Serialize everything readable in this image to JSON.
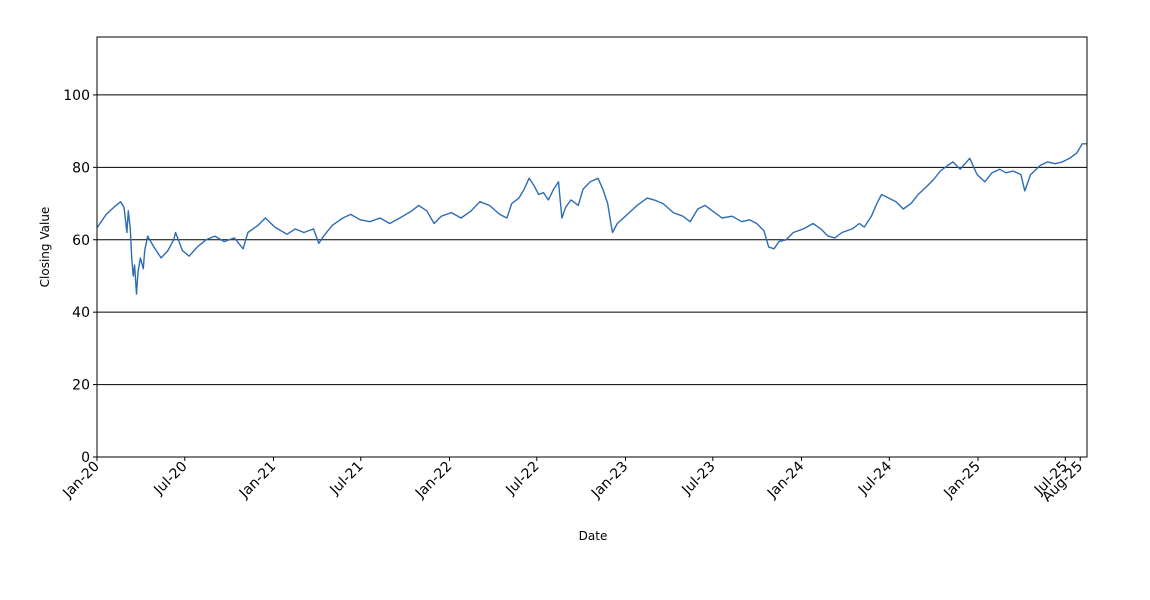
{
  "chart_data": {
    "type": "line",
    "title": "",
    "xlabel": "Date",
    "ylabel": "Closing Value",
    "ylim": [
      0,
      116
    ],
    "xlim": [
      "2020-01-01",
      "2025-08-15"
    ],
    "grid": {
      "y": true,
      "x": false
    },
    "legend": "none",
    "y_ticks": [
      "0",
      "20",
      "40",
      "60",
      "80",
      "100"
    ],
    "x_tick_labels": [
      {
        "date": "2020-01-01",
        "label": "Jan-20"
      },
      {
        "date": "2020-07-01",
        "label": "Jul-20"
      },
      {
        "date": "2021-01-01",
        "label": "Jan-21"
      },
      {
        "date": "2021-07-01",
        "label": "Jul-21"
      },
      {
        "date": "2022-01-01",
        "label": "Jan-22"
      },
      {
        "date": "2022-07-01",
        "label": "Jul-22"
      },
      {
        "date": "2023-01-01",
        "label": "Jan-23"
      },
      {
        "date": "2023-07-01",
        "label": "Jul-23"
      },
      {
        "date": "2024-01-01",
        "label": "Jan-24"
      },
      {
        "date": "2024-07-01",
        "label": "Jul-24"
      },
      {
        "date": "2025-01-01",
        "label": "Jan-25"
      },
      {
        "date": "2025-07-01",
        "label": "Jul-25"
      },
      {
        "date": "2025-08-01",
        "label": "Aug-25"
      }
    ],
    "series": [
      {
        "color": "#2d6bb5",
        "points": [
          [
            "2020-01-02",
            63.5
          ],
          [
            "2020-01-20",
            67
          ],
          [
            "2020-02-05",
            69
          ],
          [
            "2020-02-19",
            70.5
          ],
          [
            "2020-02-26",
            69
          ],
          [
            "2020-03-03",
            62
          ],
          [
            "2020-03-06",
            68
          ],
          [
            "2020-03-10",
            63
          ],
          [
            "2020-03-13",
            55
          ],
          [
            "2020-03-16",
            50
          ],
          [
            "2020-03-19",
            53
          ],
          [
            "2020-03-23",
            45
          ],
          [
            "2020-03-26",
            51
          ],
          [
            "2020-03-31",
            55
          ],
          [
            "2020-04-06",
            52
          ],
          [
            "2020-04-09",
            57
          ],
          [
            "2020-04-15",
            61
          ],
          [
            "2020-04-28",
            58
          ],
          [
            "2020-05-13",
            55
          ],
          [
            "2020-05-27",
            57
          ],
          [
            "2020-06-08",
            60
          ],
          [
            "2020-06-12",
            62
          ],
          [
            "2020-06-26",
            57
          ],
          [
            "2020-07-10",
            55.5
          ],
          [
            "2020-07-27",
            58
          ],
          [
            "2020-08-14",
            60
          ],
          [
            "2020-09-01",
            61
          ],
          [
            "2020-09-21",
            59.5
          ],
          [
            "2020-10-12",
            60.5
          ],
          [
            "2020-10-30",
            57.5
          ],
          [
            "2020-11-09",
            62
          ],
          [
            "2020-11-30",
            64
          ],
          [
            "2020-12-15",
            66
          ],
          [
            "2021-01-04",
            63.5
          ],
          [
            "2021-01-29",
            61.5
          ],
          [
            "2021-02-15",
            63
          ],
          [
            "2021-03-05",
            62
          ],
          [
            "2021-03-25",
            63
          ],
          [
            "2021-04-05",
            59
          ],
          [
            "2021-04-15",
            61
          ],
          [
            "2021-05-03",
            64
          ],
          [
            "2021-05-25",
            66
          ],
          [
            "2021-06-10",
            67
          ],
          [
            "2021-06-30",
            65.5
          ],
          [
            "2021-07-20",
            65
          ],
          [
            "2021-08-10",
            66
          ],
          [
            "2021-08-30",
            64.5
          ],
          [
            "2021-09-20",
            66
          ],
          [
            "2021-10-15",
            68
          ],
          [
            "2021-10-29",
            69.5
          ],
          [
            "2021-11-15",
            68
          ],
          [
            "2021-11-30",
            64.5
          ],
          [
            "2021-12-15",
            66.5
          ],
          [
            "2022-01-05",
            67.5
          ],
          [
            "2022-01-25",
            66
          ],
          [
            "2022-02-15",
            68
          ],
          [
            "2022-03-05",
            70.5
          ],
          [
            "2022-03-25",
            69.5
          ],
          [
            "2022-04-15",
            67
          ],
          [
            "2022-04-30",
            66
          ],
          [
            "2022-05-10",
            70
          ],
          [
            "2022-05-25",
            71.5
          ],
          [
            "2022-06-05",
            74
          ],
          [
            "2022-06-15",
            77
          ],
          [
            "2022-06-25",
            75
          ],
          [
            "2022-07-05",
            72.5
          ],
          [
            "2022-07-15",
            73
          ],
          [
            "2022-07-25",
            71
          ],
          [
            "2022-08-05",
            74
          ],
          [
            "2022-08-15",
            76
          ],
          [
            "2022-08-22",
            66
          ],
          [
            "2022-08-30",
            69
          ],
          [
            "2022-09-10",
            71
          ],
          [
            "2022-09-25",
            69.5
          ],
          [
            "2022-10-05",
            74
          ],
          [
            "2022-10-20",
            76
          ],
          [
            "2022-11-05",
            77
          ],
          [
            "2022-11-15",
            74
          ],
          [
            "2022-11-25",
            70
          ],
          [
            "2022-12-01",
            65
          ],
          [
            "2022-12-05",
            62
          ],
          [
            "2022-12-15",
            64.5
          ],
          [
            "2023-01-05",
            67
          ],
          [
            "2023-01-25",
            69.5
          ],
          [
            "2023-02-15",
            71.5
          ],
          [
            "2023-03-01",
            71
          ],
          [
            "2023-03-20",
            70
          ],
          [
            "2023-04-10",
            67.5
          ],
          [
            "2023-04-30",
            66.5
          ],
          [
            "2023-05-15",
            65
          ],
          [
            "2023-05-31",
            68.5
          ],
          [
            "2023-06-15",
            69.5
          ],
          [
            "2023-06-30",
            68
          ],
          [
            "2023-07-20",
            66
          ],
          [
            "2023-08-10",
            66.5
          ],
          [
            "2023-08-30",
            65
          ],
          [
            "2023-09-15",
            65.5
          ],
          [
            "2023-09-30",
            64.5
          ],
          [
            "2023-10-15",
            62.5
          ],
          [
            "2023-10-25",
            58
          ],
          [
            "2023-11-05",
            57.5
          ],
          [
            "2023-11-15",
            59.5
          ],
          [
            "2023-11-30",
            60
          ],
          [
            "2023-12-15",
            62
          ],
          [
            "2024-01-05",
            63
          ],
          [
            "2024-01-25",
            64.5
          ],
          [
            "2024-02-10",
            63
          ],
          [
            "2024-02-25",
            61
          ],
          [
            "2024-03-10",
            60.5
          ],
          [
            "2024-03-25",
            62
          ],
          [
            "2024-04-15",
            63
          ],
          [
            "2024-04-30",
            64.5
          ],
          [
            "2024-05-10",
            63.5
          ],
          [
            "2024-05-25",
            66.5
          ],
          [
            "2024-06-05",
            70
          ],
          [
            "2024-06-15",
            72.5
          ],
          [
            "2024-06-30",
            71.5
          ],
          [
            "2024-07-15",
            70.5
          ],
          [
            "2024-07-30",
            68.5
          ],
          [
            "2024-08-15",
            70
          ],
          [
            "2024-08-30",
            72.5
          ],
          [
            "2024-09-15",
            74.5
          ],
          [
            "2024-09-30",
            76.5
          ],
          [
            "2024-10-15",
            79
          ],
          [
            "2024-10-30",
            80.5
          ],
          [
            "2024-11-10",
            81.5
          ],
          [
            "2024-11-25",
            79.5
          ],
          [
            "2024-12-05",
            81
          ],
          [
            "2024-12-15",
            82.5
          ],
          [
            "2024-12-30",
            78
          ],
          [
            "2025-01-15",
            76
          ],
          [
            "2025-01-30",
            78.5
          ],
          [
            "2025-02-15",
            79.5
          ],
          [
            "2025-02-28",
            78.5
          ],
          [
            "2025-03-15",
            79
          ],
          [
            "2025-03-31",
            78
          ],
          [
            "2025-04-08",
            73.5
          ],
          [
            "2025-04-20",
            78
          ],
          [
            "2025-05-10",
            80.5
          ],
          [
            "2025-05-25",
            81.5
          ],
          [
            "2025-06-10",
            81
          ],
          [
            "2025-06-25",
            81.5
          ],
          [
            "2025-07-10",
            82.5
          ],
          [
            "2025-07-25",
            84
          ],
          [
            "2025-08-05",
            86.5
          ],
          [
            "2025-08-14",
            86.5
          ]
        ]
      }
    ]
  }
}
